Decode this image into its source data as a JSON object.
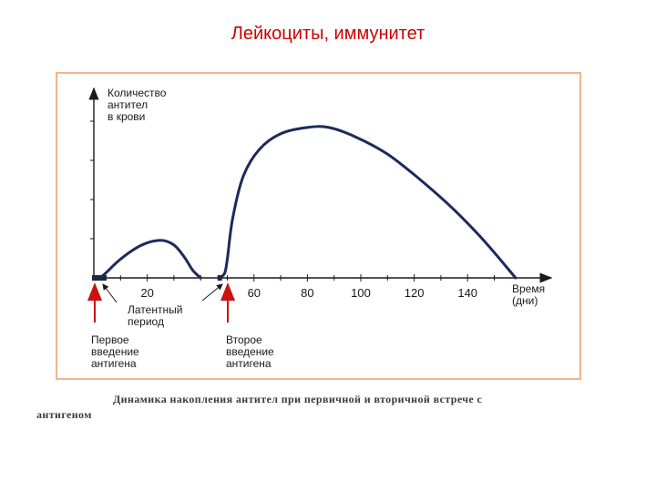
{
  "slide": {
    "title": "Лейкоциты, иммунитет"
  },
  "caption": {
    "line1": "Динамика накопления антител при первичной и вторичной встрече с",
    "line2": "антигеном"
  },
  "annotations": {
    "latent_period": [
      "Латентный",
      "период"
    ],
    "first_introduction": [
      "Первое",
      "введение",
      "антигена"
    ],
    "second_introduction": [
      "Второе",
      "введение",
      "антигена"
    ],
    "arrow_color": "#cc1111"
  },
  "chart_data": {
    "type": "line",
    "ylabel": [
      "Количество",
      "антител",
      "в крови"
    ],
    "xlabel": [
      "Время",
      "(дни)"
    ],
    "x_ticks": [
      20,
      60,
      80,
      100,
      120,
      140
    ],
    "x_tick_labels": [
      "20",
      "60",
      "80",
      "100",
      "120",
      "140"
    ],
    "xlim": [
      0,
      178
    ],
    "ylim": [
      0,
      1
    ],
    "y_ticks_unlabeled": 4,
    "grid": false,
    "series": [
      {
        "color": "#1c2a5c",
        "x": [
          0,
          3,
          10,
          18,
          25,
          30,
          34,
          37,
          40
        ],
        "y": [
          0,
          0.01,
          0.12,
          0.21,
          0.24,
          0.21,
          0.13,
          0.05,
          0
        ]
      },
      {
        "color": "#1c2a5c",
        "x": [
          47,
          49,
          50,
          52,
          56,
          62,
          70,
          80,
          88,
          98,
          110,
          122,
          134,
          146,
          158
        ],
        "y": [
          0,
          0.03,
          0.12,
          0.38,
          0.65,
          0.82,
          0.92,
          0.96,
          0.96,
          0.9,
          0.79,
          0.63,
          0.45,
          0.24,
          0
        ]
      }
    ]
  }
}
